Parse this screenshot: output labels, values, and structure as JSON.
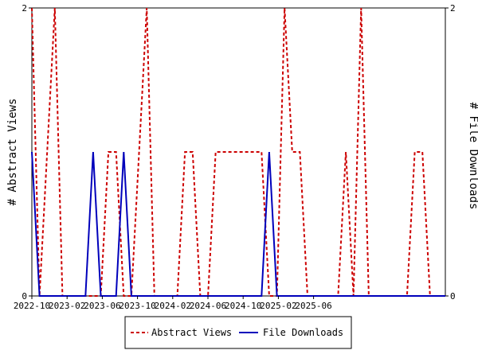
{
  "chart_data": {
    "type": "line",
    "x_tick_labels": [
      "2022-10",
      "2023-02",
      "2023-06",
      "2023-10",
      "2024-02",
      "2024-06",
      "2024-10",
      "2025-02",
      "2025-06"
    ],
    "y_left": {
      "label": "# Abstract Views",
      "min": 0,
      "max": 2,
      "tick_labels": [
        "0",
        "2"
      ]
    },
    "y_right": {
      "label": "# File Downloads",
      "min": 0,
      "max": 2,
      "tick_labels": [
        "0",
        "2"
      ]
    },
    "legend": {
      "placement": "bottom",
      "entries": [
        "Abstract Views",
        "File Downloads"
      ]
    },
    "series": [
      {
        "name": "Abstract Views",
        "color": "#cc0000",
        "style": "dashed",
        "axis": "left",
        "values": [
          2,
          0,
          1,
          2,
          0,
          0,
          0,
          0,
          0,
          0,
          1,
          1,
          0,
          0,
          1,
          2,
          0,
          0,
          0,
          0,
          1,
          1,
          0,
          0,
          1,
          1,
          1,
          1,
          1,
          1,
          1,
          0,
          0,
          2,
          1,
          1,
          0,
          0,
          0,
          0,
          0,
          1,
          0,
          2,
          0,
          0,
          0,
          0,
          0,
          0,
          1,
          1,
          0,
          0,
          0
        ]
      },
      {
        "name": "File Downloads",
        "color": "#0000bb",
        "style": "solid",
        "axis": "right",
        "values": [
          1,
          0,
          0,
          0,
          0,
          0,
          0,
          0,
          1,
          0,
          0,
          0,
          1,
          0,
          0,
          0,
          0,
          0,
          0,
          0,
          0,
          0,
          0,
          0,
          0,
          0,
          0,
          0,
          0,
          0,
          0,
          1,
          0,
          0,
          0,
          0,
          0,
          0,
          0,
          0,
          0,
          0,
          0,
          0,
          0,
          0,
          0,
          0,
          0,
          0,
          0,
          0,
          0,
          0,
          0
        ]
      }
    ]
  }
}
